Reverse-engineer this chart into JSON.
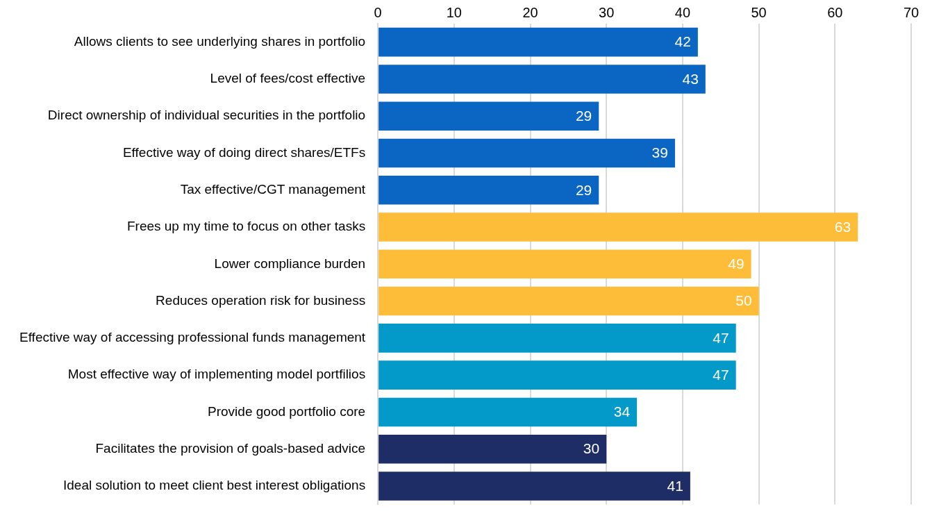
{
  "chart_data": {
    "type": "bar",
    "orientation": "horizontal",
    "categories": [
      "Allows clients to see underlying shares in portfolio",
      "Level of fees/cost effective",
      "Direct ownership of individual securities in the portfolio",
      "Effective way of doing direct shares/ETFs",
      "Tax effective/CGT management",
      "Frees up my time to focus on other tasks",
      "Lower compliance burden",
      "Reduces operation risk for business",
      "Effective way of accessing professional funds management",
      "Most effective way of implementing model portfilios",
      "Provide good portfolio core",
      "Facilitates the provision of goals-based advice",
      "Ideal solution to meet client best interest obligations"
    ],
    "values": [
      42,
      43,
      29,
      39,
      29,
      63,
      49,
      50,
      47,
      47,
      34,
      30,
      41
    ],
    "colors": [
      "#0a66c2",
      "#0a66c2",
      "#0a66c2",
      "#0a66c2",
      "#0a66c2",
      "#fdbd39",
      "#fdbd39",
      "#fdbd39",
      "#0399c9",
      "#0399c9",
      "#0399c9",
      "#1f2d66",
      "#1f2d66"
    ],
    "xlim": [
      0,
      70
    ],
    "xticks": [
      0,
      10,
      20,
      30,
      40,
      50,
      60,
      70
    ],
    "grid": "x",
    "data_labels": true
  }
}
